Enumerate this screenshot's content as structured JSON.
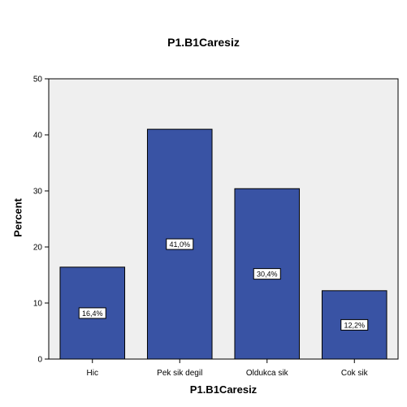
{
  "chart_data": {
    "type": "bar",
    "title": "P1.B1Caresiz",
    "xlabel": "P1.B1Caresiz",
    "ylabel": "Percent",
    "categories": [
      "Hic",
      "Pek sik degil",
      "Oldukca sik",
      "Cok sik"
    ],
    "values": [
      16.4,
      41.0,
      30.4,
      12.2
    ],
    "data_labels": [
      "16,4%",
      "41,0%",
      "30,4%",
      "12,2%"
    ],
    "ylim": [
      0,
      50
    ],
    "yticks": [
      0,
      10,
      20,
      30,
      40,
      50
    ],
    "grid": false,
    "colors": {
      "bar": "#3953A4",
      "bar_stroke": "#000000",
      "plot_background": "#EFEFEF"
    }
  }
}
